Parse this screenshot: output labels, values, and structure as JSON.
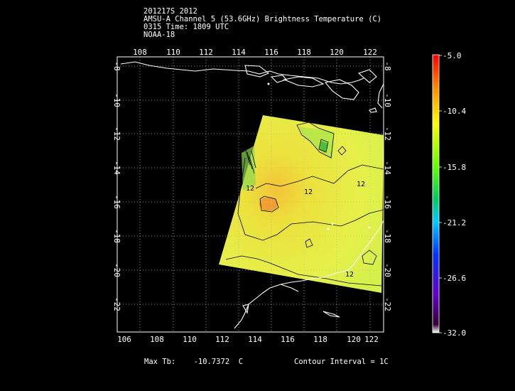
{
  "header": {
    "line1": "201217S 2012",
    "line2": "AMSU-A Channel 5 (53.6GHz) Brightness Temperature (C)",
    "line3": "0315 Time: 1809 UTC",
    "line4": "NOAA-18"
  },
  "footer": {
    "max_label": "Max Tb:",
    "max_value": "-10.7372",
    "max_unit": "C",
    "contour": "Contour Interval = 1C"
  },
  "map": {
    "top_lon_labels": [
      "108",
      "110",
      "112",
      "114",
      "116",
      "118",
      "120",
      "122"
    ],
    "bottom_lon_labels": [
      "106",
      "108",
      "110",
      "112",
      "114",
      "116",
      "118",
      "120",
      "122"
    ],
    "lat_labels": [
      "-8",
      "-10",
      "-12",
      "-14",
      "-16",
      "-18",
      "-20",
      "-22"
    ],
    "contour_labels": [
      "12",
      "12",
      "12",
      "12"
    ]
  },
  "colorbar": {
    "ticks": [
      "-5.0",
      "-10.4",
      "-15.8",
      "-21.2",
      "-26.6",
      "-32.0"
    ],
    "colors": [
      "#ff0000",
      "#ff9900",
      "#ffff00",
      "#66ff00",
      "#00cc66",
      "#00ccff",
      "#0033ff",
      "#6600cc",
      "#330033",
      "#ffffff"
    ]
  },
  "colors": {
    "swath": "#e8f046",
    "warm_core": "#f0a030"
  }
}
